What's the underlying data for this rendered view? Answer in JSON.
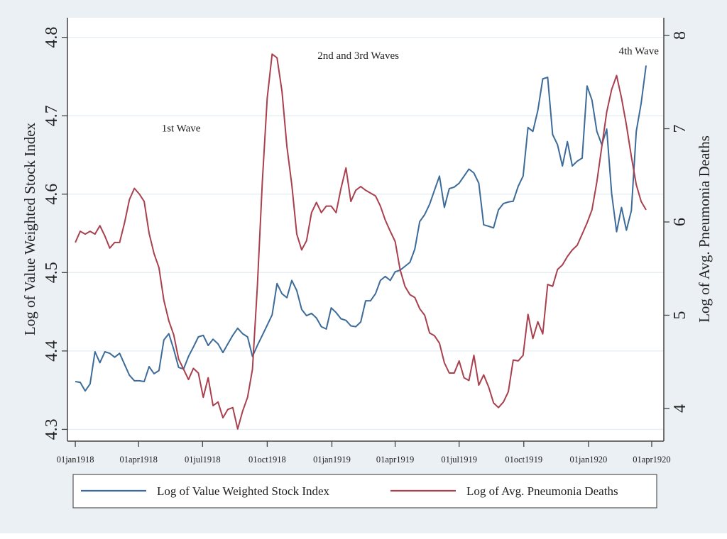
{
  "chart_data": {
    "type": "line",
    "title": "",
    "xlabel": "",
    "x_unit": "weeks since 01jan1918",
    "x_ticks": [
      {
        "week": 0,
        "label": "01jan1918"
      },
      {
        "week": 12.86,
        "label": "01apr1918"
      },
      {
        "week": 25.86,
        "label": "01jul1918"
      },
      {
        "week": 39.0,
        "label": "01oct1918"
      },
      {
        "week": 52.14,
        "label": "01jan1919"
      },
      {
        "week": 65.0,
        "label": "01apr1919"
      },
      {
        "week": 78.0,
        "label": "01jul1919"
      },
      {
        "week": 91.14,
        "label": "01oct1919"
      },
      {
        "week": 104.29,
        "label": "01jan1920"
      },
      {
        "week": 117.14,
        "label": "01apr1920"
      }
    ],
    "xlim": [
      -1.6,
      119.6
    ],
    "y_left": {
      "label": "Log of Value Weighted Stock Index",
      "ylim": [
        4.285,
        4.825
      ],
      "ticks": [
        "4.3",
        "4.4",
        "4.5",
        "4.6",
        "4.7",
        "4.8"
      ],
      "tick_values": [
        4.3,
        4.4,
        4.5,
        4.6,
        4.7,
        4.8
      ]
    },
    "y_right": {
      "label": "Log of Avg. Pneumonia Deaths",
      "ylim": [
        3.65,
        8.19
      ],
      "ticks": [
        "4",
        "5",
        "6",
        "7",
        "8"
      ],
      "tick_values": [
        4,
        5,
        6,
        7,
        8
      ]
    },
    "grid": true,
    "legend_position": "bottom",
    "series": [
      {
        "name": "Log of Value Weighted Stock Index",
        "axis": "left",
        "color": "#3d6b99",
        "x_start_week": 0,
        "x_step_weeks": 1,
        "values": [
          4.361,
          4.36,
          4.349,
          4.358,
          4.399,
          4.385,
          4.399,
          4.397,
          4.392,
          4.397,
          4.383,
          4.369,
          4.362,
          4.362,
          4.361,
          4.38,
          4.371,
          4.375,
          4.414,
          4.422,
          4.402,
          4.379,
          4.377,
          4.393,
          4.405,
          4.418,
          4.42,
          4.407,
          4.415,
          4.409,
          4.398,
          4.409,
          4.42,
          4.429,
          4.422,
          4.418,
          4.393,
          4.407,
          4.42,
          4.433,
          4.446,
          4.486,
          4.473,
          4.468,
          4.49,
          4.477,
          4.453,
          4.445,
          4.448,
          4.442,
          4.431,
          4.428,
          4.455,
          4.449,
          4.441,
          4.439,
          4.432,
          4.431,
          4.437,
          4.464,
          4.464,
          4.473,
          4.49,
          4.495,
          4.49,
          4.501,
          4.503,
          4.508,
          4.513,
          4.53,
          4.565,
          4.574,
          4.587,
          4.605,
          4.623,
          4.583,
          4.607,
          4.609,
          4.614,
          4.623,
          4.632,
          4.627,
          4.614,
          4.561,
          4.559,
          4.557,
          4.58,
          4.588,
          4.59,
          4.591,
          4.61,
          4.623,
          4.685,
          4.68,
          4.707,
          4.747,
          4.749,
          4.676,
          4.663,
          4.636,
          4.667,
          4.636,
          4.642,
          4.646,
          4.738,
          4.72,
          4.68,
          4.663,
          4.683,
          4.601,
          4.552,
          4.583,
          4.554,
          4.579,
          4.68,
          4.716,
          4.764
        ]
      },
      {
        "name": "Log of Avg. Pneumonia Deaths",
        "axis": "right",
        "color": "#a8404e",
        "x_start_week": 0,
        "x_step_weeks": 1,
        "values": [
          5.78,
          5.9,
          5.87,
          5.9,
          5.87,
          5.96,
          5.85,
          5.72,
          5.78,
          5.78,
          5.99,
          6.24,
          6.36,
          6.3,
          6.22,
          5.88,
          5.66,
          5.51,
          5.16,
          4.94,
          4.79,
          4.53,
          4.42,
          4.31,
          4.43,
          4.38,
          4.12,
          4.33,
          4.03,
          4.07,
          3.9,
          3.99,
          4.01,
          3.78,
          3.97,
          4.12,
          4.42,
          5.31,
          6.43,
          7.33,
          7.8,
          7.76,
          7.4,
          6.81,
          6.4,
          5.87,
          5.7,
          5.8,
          6.1,
          6.21,
          6.1,
          6.17,
          6.17,
          6.1,
          6.36,
          6.58,
          6.22,
          6.34,
          6.38,
          6.34,
          6.31,
          6.28,
          6.17,
          6.02,
          5.9,
          5.79,
          5.49,
          5.31,
          5.22,
          5.19,
          5.07,
          5.0,
          4.81,
          4.78,
          4.7,
          4.49,
          4.38,
          4.38,
          4.51,
          4.33,
          4.3,
          4.57,
          4.25,
          4.36,
          4.23,
          4.06,
          4.01,
          4.07,
          4.18,
          4.52,
          4.51,
          4.57,
          5.01,
          4.75,
          4.93,
          4.8,
          5.33,
          5.31,
          5.49,
          5.54,
          5.63,
          5.7,
          5.75,
          5.87,
          5.99,
          6.13,
          6.43,
          6.81,
          7.18,
          7.42,
          7.57,
          7.33,
          7.04,
          6.7,
          6.4,
          6.22,
          6.13
        ]
      }
    ],
    "annotations": [
      {
        "text": "1st Wave",
        "week": 21.5,
        "value_right": 6.97
      },
      {
        "text": "2nd and 3rd Waves",
        "week": 57.5,
        "value_right": 7.75
      },
      {
        "text": "4th Wave",
        "week": 114.5,
        "value_right": 7.8
      }
    ]
  },
  "legend": {
    "items": [
      {
        "label": "Log of Value Weighted Stock Index",
        "color": "#3d6b99"
      },
      {
        "label": "Log of Avg. Pneumonia Deaths",
        "color": "#a8404e"
      }
    ]
  },
  "style": {
    "frame_bg": "#eaf0f3",
    "plot_bg": "#ffffff",
    "grid_color": "#e4eef3",
    "axis_color": "#444444"
  }
}
